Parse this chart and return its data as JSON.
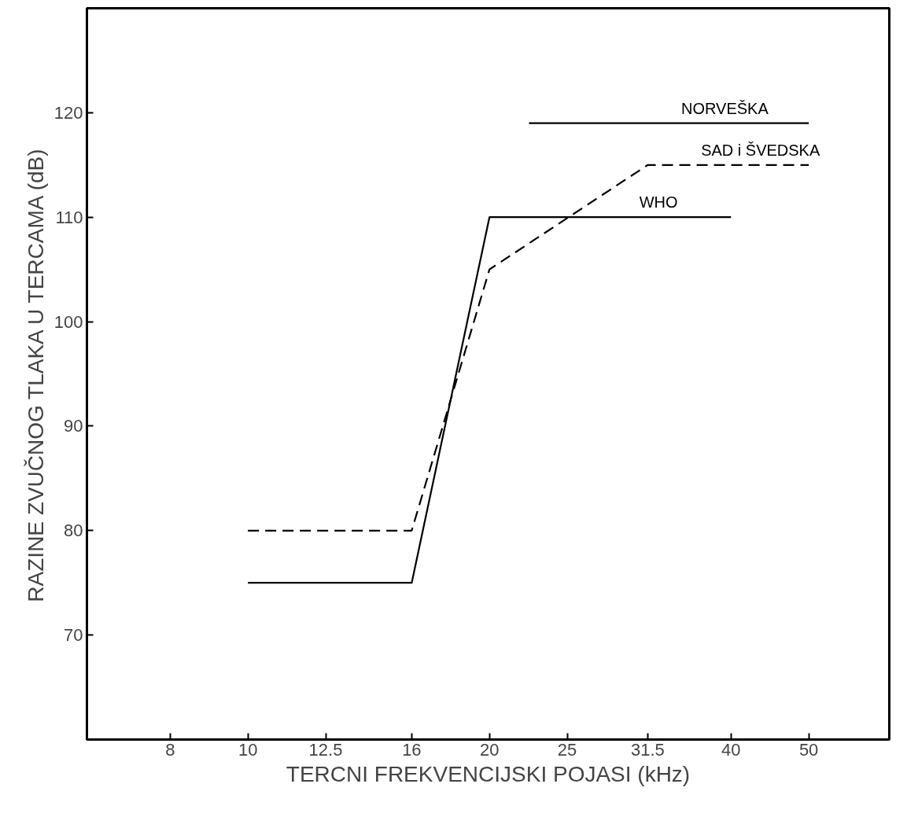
{
  "chart_data": {
    "type": "line",
    "xlabel": "TERCNI FREKVENCIJSKI POJASI (kHz)",
    "ylabel": "RAZINE ZVUČNOG TLAKA U TERCAMA (dB)",
    "log": "x",
    "xlim": [
      6.3,
      63
    ],
    "xticks": [
      8,
      10,
      12.5,
      16,
      20,
      25,
      31.5,
      40,
      50
    ],
    "ylim": [
      60,
      130
    ],
    "yticks": [
      70,
      80,
      90,
      100,
      110,
      120
    ],
    "grid": false,
    "marker": "none",
    "series": [
      {
        "name": "NORVEŠKA",
        "color": "#000000",
        "line_style": "solid",
        "x": [
          22.4,
          50
        ],
        "values": [
          119,
          119
        ]
      },
      {
        "name": "SAD i ŠVEDSKA",
        "color": "#000000",
        "line_style": "dashed",
        "x": [
          10,
          16,
          20,
          31.5,
          50
        ],
        "values": [
          80,
          80,
          105,
          115,
          115
        ]
      },
      {
        "name": "WHO",
        "color": "#000000",
        "line_style": "solid",
        "x": [
          10,
          16,
          20,
          40
        ],
        "values": [
          75,
          75,
          110,
          110
        ]
      }
    ]
  }
}
